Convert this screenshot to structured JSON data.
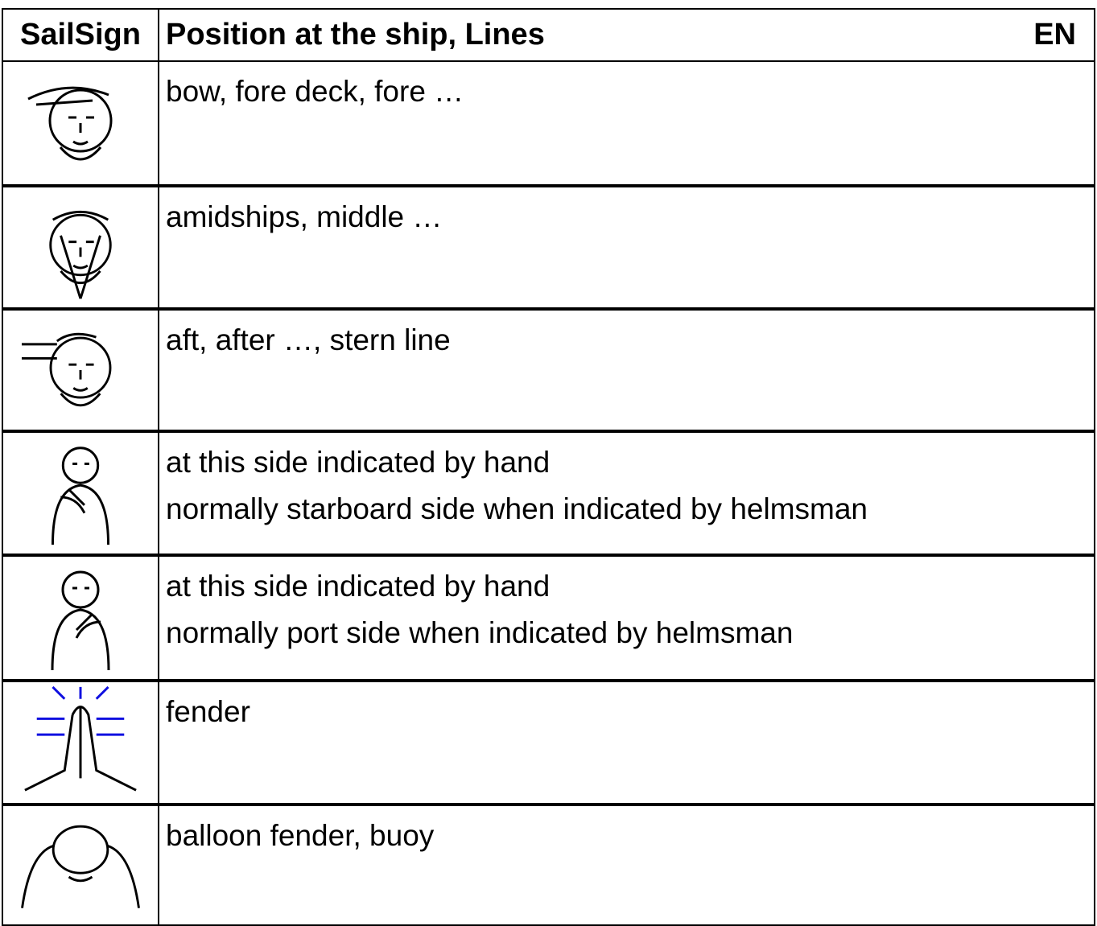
{
  "header": {
    "sign": "SailSign",
    "title": "Position at the ship, Lines",
    "lang": "EN"
  },
  "rows": [
    {
      "lines": [
        "bow, fore deck, fore …"
      ]
    },
    {
      "lines": [
        "amidships, middle …"
      ]
    },
    {
      "lines": [
        "aft, after …, stern line"
      ]
    },
    {
      "lines": [
        "at this side indicated by hand",
        "normally starboard side when indicated by helmsman"
      ]
    },
    {
      "lines": [
        "at this side indicated by hand",
        "normally port side when indicated by helmsman"
      ]
    },
    {
      "lines": [
        "fender"
      ]
    },
    {
      "lines": [
        "balloon fender, buoy"
      ]
    }
  ]
}
